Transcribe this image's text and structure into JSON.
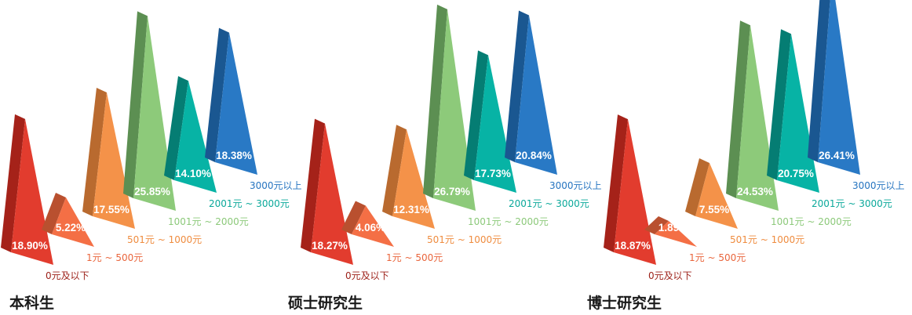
{
  "colors": {
    "bin_0": [
      "#e23c2e",
      "#a52219",
      "#ffffff"
    ],
    "bin_1": [
      "#f46f45",
      "#b9502f",
      "#ffffff"
    ],
    "bin_2": [
      "#f49249",
      "#b96a2f",
      "#ffffff"
    ],
    "bin_3": [
      "#8dca7a",
      "#5c8f52",
      "#ffffff"
    ],
    "bin_4": [
      "#07b3a5",
      "#057d73",
      "#ffffff"
    ],
    "bin_5": [
      "#2979c5",
      "#1a5791",
      "#ffffff"
    ],
    "label_colors": [
      "#9c1f17",
      "#e9653c",
      "#ef8c3f",
      "#8cc97a",
      "#0aa89a",
      "#2574c0"
    ]
  },
  "chart_data": [
    {
      "type": "bar",
      "title": "本科生",
      "categories": [
        "0元及以下",
        "1元 ~ 500元",
        "501元 ~ 1000元",
        "1001元 ~ 2000元",
        "2001元 ~ 3000元",
        "3000元以上"
      ],
      "values": [
        18.9,
        5.22,
        17.55,
        25.85,
        14.1,
        18.38
      ],
      "value_labels": [
        "18.90%",
        "5.22%",
        "17.55%",
        "25.85%",
        "14.10%",
        "18.38%"
      ]
    },
    {
      "type": "bar",
      "title": "硕士研究生",
      "categories": [
        "0元及以下",
        "1元 ~ 500元",
        "501元 ~ 1000元",
        "1001元 ~ 2000元",
        "2001元 ~ 3000元",
        "3000元以上"
      ],
      "values": [
        18.27,
        4.06,
        12.31,
        26.79,
        17.73,
        20.84
      ],
      "value_labels": [
        "18.27%",
        "4.06%",
        "12.31%",
        "26.79%",
        "17.73%",
        "20.84%"
      ]
    },
    {
      "type": "bar",
      "title": "博士研究生",
      "categories": [
        "0元及以下",
        "1元 ~ 500元",
        "501元 ~ 1000元",
        "1001元 ~ 2000元",
        "2001元 ~ 3000元",
        "3000元以上"
      ],
      "values": [
        18.87,
        1.89,
        7.55,
        24.53,
        20.75,
        26.41
      ],
      "value_labels": [
        "18.87%",
        "1.89%",
        "7.55%",
        "24.53%",
        "20.75%",
        "26.41%"
      ]
    }
  ]
}
